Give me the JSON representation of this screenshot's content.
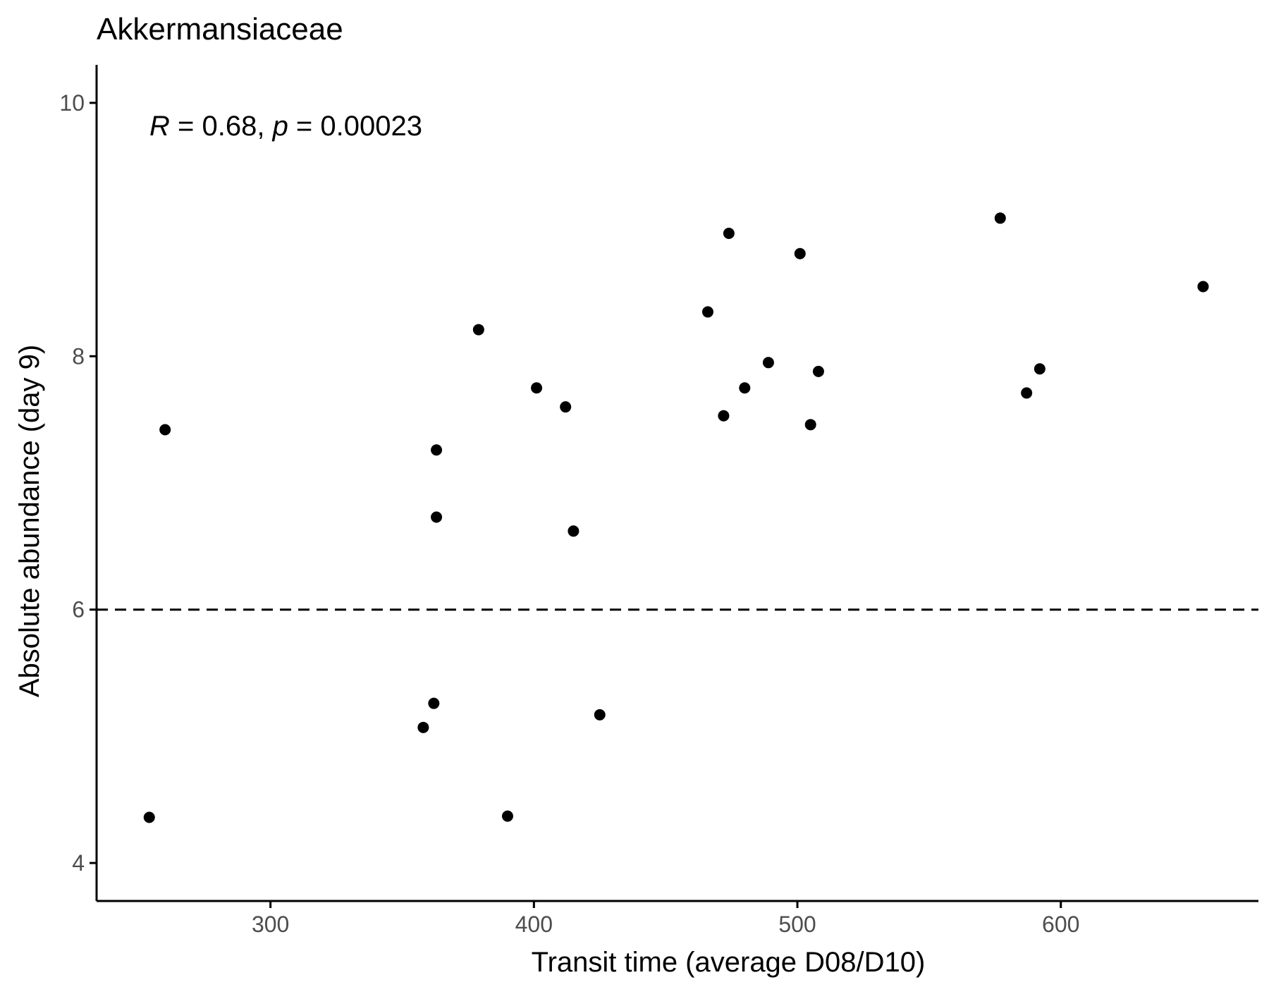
{
  "chart_data": {
    "type": "scatter",
    "title": "Akkermansiaceae",
    "xlabel": "Transit time (average D08/D10)",
    "ylabel": "Absolute abundance (day 9)",
    "xlim": [
      234,
      675
    ],
    "ylim": [
      3.7,
      10.3
    ],
    "xticks": [
      300,
      400,
      500,
      600
    ],
    "yticks": [
      4,
      6,
      8,
      10
    ],
    "xtick_labels": [
      "300",
      "400",
      "500",
      "600"
    ],
    "ytick_labels": [
      "4",
      "6",
      "8",
      "10"
    ],
    "grid": false,
    "reference_line": {
      "y": 6,
      "style": "dashed"
    },
    "annotation": {
      "r_label": "R",
      "r_text": " = 0.68, ",
      "p_label": "p",
      "p_text": " = 0.00023"
    },
    "points": [
      {
        "x": 254,
        "y": 4.36
      },
      {
        "x": 260,
        "y": 7.42
      },
      {
        "x": 358,
        "y": 5.07
      },
      {
        "x": 362,
        "y": 5.26
      },
      {
        "x": 363,
        "y": 7.26
      },
      {
        "x": 363,
        "y": 6.73
      },
      {
        "x": 379,
        "y": 8.21
      },
      {
        "x": 390,
        "y": 4.37
      },
      {
        "x": 401,
        "y": 7.75
      },
      {
        "x": 412,
        "y": 7.6
      },
      {
        "x": 415,
        "y": 6.62
      },
      {
        "x": 425,
        "y": 5.17
      },
      {
        "x": 466,
        "y": 8.35
      },
      {
        "x": 472,
        "y": 7.53
      },
      {
        "x": 474,
        "y": 8.97
      },
      {
        "x": 480,
        "y": 7.75
      },
      {
        "x": 489,
        "y": 7.95
      },
      {
        "x": 501,
        "y": 8.81
      },
      {
        "x": 505,
        "y": 7.46
      },
      {
        "x": 508,
        "y": 7.88
      },
      {
        "x": 577,
        "y": 9.09
      },
      {
        "x": 587,
        "y": 7.71
      },
      {
        "x": 592,
        "y": 7.9
      },
      {
        "x": 654,
        "y": 8.55
      }
    ]
  }
}
